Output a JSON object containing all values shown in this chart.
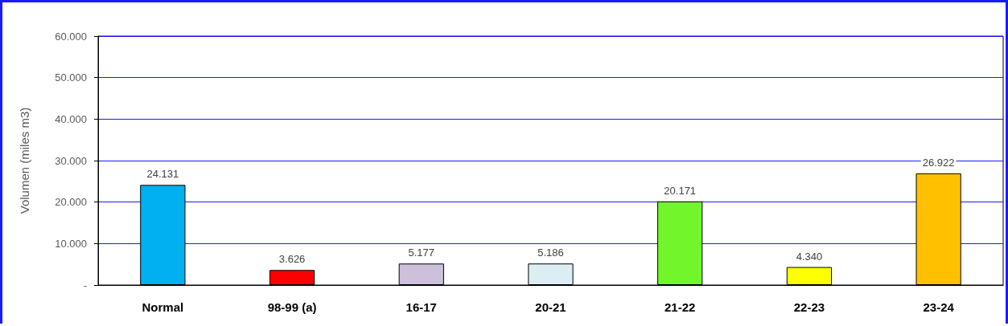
{
  "chart_data": {
    "type": "bar",
    "ylabel": "Volumen (miles m3)",
    "categories": [
      "Normal",
      "98-99 (a)",
      "16-17",
      "20-21",
      "21-22",
      "22-23",
      "23-24"
    ],
    "values": [
      24131,
      3626,
      5177,
      5186,
      20171,
      4340,
      26922
    ],
    "value_labels": [
      "24.131",
      "3.626",
      "5.177",
      "5.186",
      "20.171",
      "4.340",
      "26.922"
    ],
    "colors": [
      "#00b0f0",
      "#ff0000",
      "#ccc0da",
      "#daeef3",
      "#72f52a",
      "#ffff00",
      "#ffc000"
    ],
    "ylim": [
      0,
      60000
    ],
    "yticks": [
      {
        "value": 0,
        "label": "-"
      },
      {
        "value": 10000,
        "label": "10.000"
      },
      {
        "value": 20000,
        "label": "20.000"
      },
      {
        "value": 30000,
        "label": "30.000"
      },
      {
        "value": 40000,
        "label": "40.000"
      },
      {
        "value": 50000,
        "label": "50.000"
      },
      {
        "value": 60000,
        "label": "60.000"
      }
    ],
    "grid": "y"
  }
}
